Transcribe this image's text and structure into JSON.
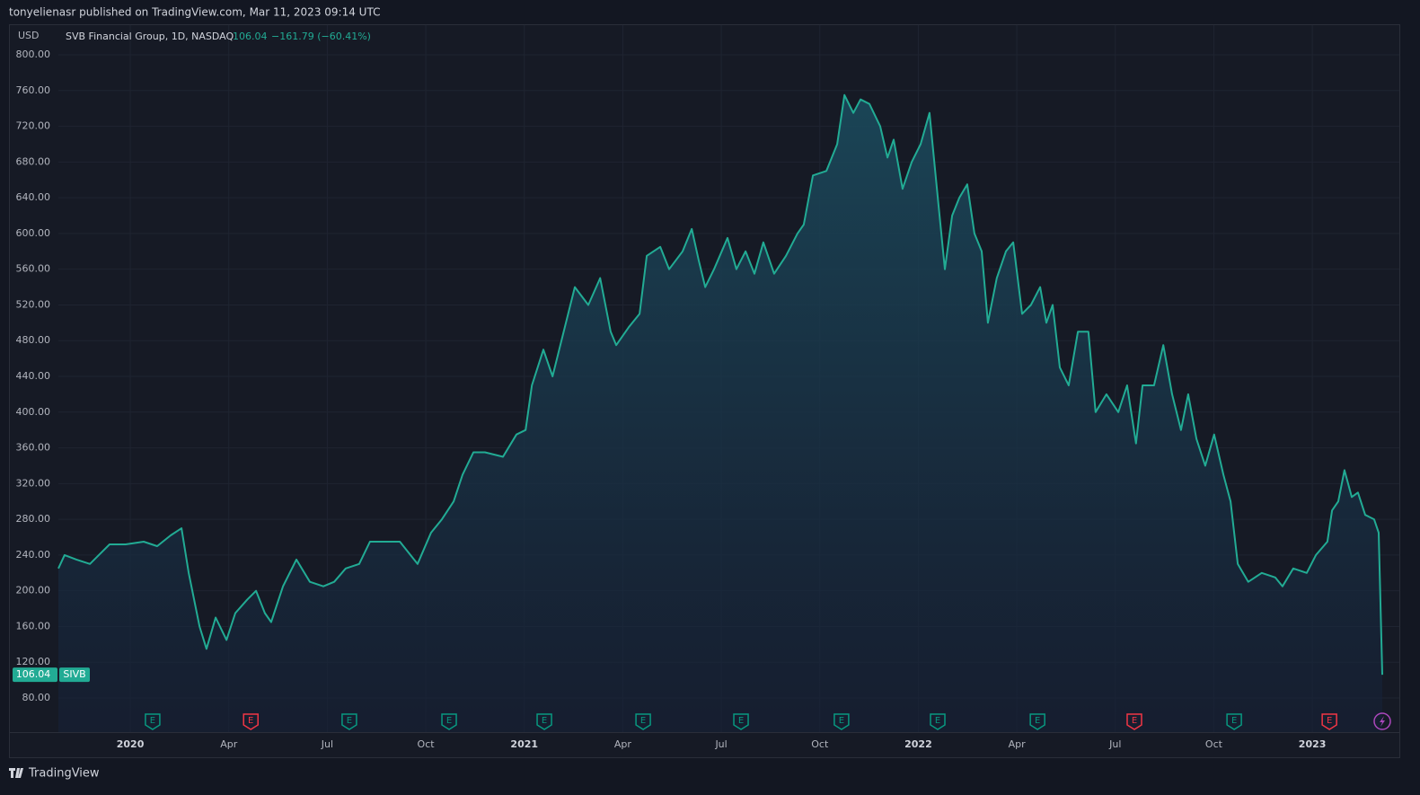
{
  "header": {
    "publisher": "tonyelienasr published on TradingView.com, Mar 11, 2023 09:14 UTC"
  },
  "footer": {
    "brand": "TradingView"
  },
  "chart_data": {
    "type": "area",
    "currency": "USD",
    "symbol_title": "SVB Financial Group, 1D, NASDAQ",
    "ticker": "SIVB",
    "change": "−161.79 (−60.41%)",
    "grid": true,
    "xlim": [
      -2.19,
      38.65
    ],
    "xticks": [
      {
        "value": 0,
        "label": "2020"
      },
      {
        "value": 3,
        "label": "Apr"
      },
      {
        "value": 6,
        "label": "Jul"
      },
      {
        "value": 9,
        "label": "Oct"
      },
      {
        "value": 12,
        "label": "2021"
      },
      {
        "value": 15,
        "label": "Apr"
      },
      {
        "value": 18,
        "label": "Jul"
      },
      {
        "value": 21,
        "label": "Oct"
      },
      {
        "value": 24,
        "label": "2022"
      },
      {
        "value": 27,
        "label": "Apr"
      },
      {
        "value": 30,
        "label": "Jul"
      },
      {
        "value": 33,
        "label": "Oct"
      },
      {
        "value": 36,
        "label": "2023"
      }
    ],
    "ylim": [
      41.8,
      833.2
    ],
    "yticks": [
      {
        "value": 80,
        "label": "80.00"
      },
      {
        "value": 120,
        "label": "120.00"
      },
      {
        "value": 160,
        "label": "160.00"
      },
      {
        "value": 200,
        "label": "200.00"
      },
      {
        "value": 240,
        "label": "240.00"
      },
      {
        "value": 280,
        "label": "280.00"
      },
      {
        "value": 320,
        "label": "320.00"
      },
      {
        "value": 360,
        "label": "360.00"
      },
      {
        "value": 400,
        "label": "400.00"
      },
      {
        "value": 440,
        "label": "440.00"
      },
      {
        "value": 480,
        "label": "480.00"
      },
      {
        "value": 520,
        "label": "520.00"
      },
      {
        "value": 560,
        "label": "560.00"
      },
      {
        "value": 600,
        "label": "600.00"
      },
      {
        "value": 640,
        "label": "640.00"
      },
      {
        "value": 680,
        "label": "680.00"
      },
      {
        "value": 720,
        "label": "720.00"
      },
      {
        "value": 760,
        "label": "760.00"
      },
      {
        "value": 800,
        "label": "800.00"
      }
    ],
    "earnings": [
      {
        "x": 0.68,
        "label": "E",
        "color": "#089981"
      },
      {
        "x": 3.67,
        "label": "E",
        "color": "#f23645"
      },
      {
        "x": 6.67,
        "label": "E",
        "color": "#089981"
      },
      {
        "x": 9.71,
        "label": "E",
        "color": "#089981"
      },
      {
        "x": 12.61,
        "label": "E",
        "color": "#089981"
      },
      {
        "x": 15.62,
        "label": "E",
        "color": "#089981"
      },
      {
        "x": 18.6,
        "label": "E",
        "color": "#089981"
      },
      {
        "x": 21.66,
        "label": "E",
        "color": "#089981"
      },
      {
        "x": 24.59,
        "label": "E",
        "color": "#089981"
      },
      {
        "x": 27.63,
        "label": "E",
        "color": "#089981"
      },
      {
        "x": 30.58,
        "label": "E",
        "color": "#f23645"
      },
      {
        "x": 33.62,
        "label": "E",
        "color": "#089981"
      },
      {
        "x": 36.52,
        "label": "E",
        "color": "#f23645"
      }
    ],
    "x": [
      -2.19,
      -2.0,
      -1.64,
      -1.23,
      -0.96,
      -0.63,
      -0.14,
      0.41,
      0.82,
      1.23,
      1.56,
      1.78,
      2.11,
      2.32,
      2.6,
      2.93,
      3.2,
      3.56,
      3.83,
      4.1,
      4.29,
      4.65,
      5.06,
      5.47,
      5.88,
      6.21,
      6.56,
      6.97,
      7.3,
      7.74,
      8.21,
      8.75,
      9.16,
      9.49,
      9.85,
      10.12,
      10.45,
      10.8,
      11.35,
      11.76,
      12.04,
      12.23,
      12.58,
      12.86,
      13.13,
      13.54,
      13.95,
      14.31,
      14.63,
      14.8,
      15.18,
      15.51,
      15.73,
      16.14,
      16.41,
      16.82,
      17.1,
      17.31,
      17.51,
      17.78,
      18.19,
      18.46,
      18.74,
      19.01,
      19.28,
      19.61,
      19.97,
      20.32,
      20.51,
      20.79,
      21.2,
      21.53,
      21.75,
      22.02,
      22.24,
      22.51,
      22.84,
      23.06,
      23.25,
      23.52,
      23.8,
      24.07,
      24.34,
      24.62,
      24.81,
      25.03,
      25.25,
      25.49,
      25.71,
      25.93,
      26.12,
      26.39,
      26.67,
      26.89,
      27.16,
      27.43,
      27.71,
      27.9,
      28.09,
      28.31,
      28.58,
      28.86,
      29.18,
      29.4,
      29.73,
      30.09,
      30.36,
      30.63,
      30.83,
      31.18,
      31.46,
      31.73,
      32.0,
      32.22,
      32.47,
      32.74,
      33.01,
      33.29,
      33.51,
      33.73,
      34.05,
      34.46,
      34.87,
      35.09,
      35.42,
      35.83,
      36.11,
      36.46,
      36.6,
      36.79,
      36.98,
      37.2,
      37.39,
      37.61,
      37.88,
      38.02,
      38.13
    ],
    "series": [
      {
        "name": "SIVB",
        "color": "#22ab94",
        "values": [
          225,
          240,
          235,
          230,
          240,
          252,
          252,
          255,
          250,
          262,
          270,
          220,
          160,
          135,
          170,
          145,
          175,
          190,
          200,
          175,
          165,
          205,
          235,
          210,
          205,
          210,
          225,
          230,
          255,
          255,
          255,
          230,
          265,
          280,
          300,
          330,
          355,
          355,
          350,
          375,
          380,
          430,
          470,
          440,
          480,
          540,
          520,
          550,
          490,
          475,
          495,
          510,
          575,
          585,
          560,
          580,
          605,
          570,
          540,
          560,
          595,
          560,
          580,
          555,
          590,
          555,
          575,
          600,
          610,
          665,
          670,
          700,
          755,
          735,
          750,
          745,
          720,
          685,
          705,
          650,
          680,
          700,
          735,
          630,
          560,
          620,
          640,
          655,
          600,
          580,
          500,
          550,
          580,
          590,
          510,
          520,
          540,
          500,
          520,
          450,
          430,
          490,
          490,
          400,
          420,
          400,
          430,
          365,
          430,
          430,
          475,
          420,
          380,
          420,
          370,
          340,
          375,
          330,
          300,
          230,
          210,
          220,
          215,
          205,
          225,
          220,
          240,
          255,
          290,
          300,
          335,
          305,
          310,
          285,
          280,
          265,
          106.04
        ]
      }
    ]
  }
}
